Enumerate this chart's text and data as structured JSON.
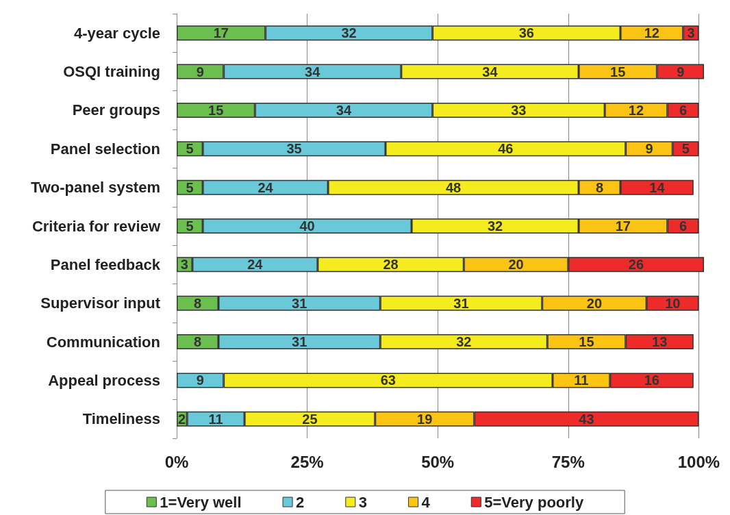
{
  "chart_data": {
    "type": "bar",
    "orientation": "horizontal",
    "stacked": true,
    "data_labels": true,
    "grid": "x",
    "legend": "bottom",
    "categories": [
      "4-year cycle",
      "OSQI training",
      "Peer groups",
      "Panel selection",
      "Two-panel system",
      "Criteria for review",
      "Panel feedback",
      "Supervisor input",
      "Communication",
      "Appeal process",
      "Timeliness"
    ],
    "series": [
      {
        "name": "1=Very well",
        "color": "#6bbf4e",
        "values": [
          17,
          9,
          15,
          5,
          5,
          5,
          3,
          8,
          8,
          null,
          2
        ]
      },
      {
        "name": "2",
        "color": "#6ac9d9",
        "values": [
          32,
          34,
          34,
          35,
          24,
          40,
          24,
          31,
          31,
          9,
          11
        ]
      },
      {
        "name": "3",
        "color": "#f4ec1f",
        "values": [
          36,
          34,
          33,
          46,
          48,
          32,
          28,
          31,
          32,
          63,
          25
        ]
      },
      {
        "name": "4",
        "color": "#fbc314",
        "values": [
          12,
          15,
          12,
          9,
          8,
          17,
          20,
          20,
          15,
          11,
          19
        ]
      },
      {
        "name": "5=Very poorly",
        "color": "#ee2b2b",
        "values": [
          3,
          9,
          6,
          5,
          14,
          6,
          26,
          10,
          13,
          16,
          43
        ]
      }
    ],
    "xlim": [
      0,
      101
    ],
    "xticks": [
      {
        "value": 0,
        "label": "0%"
      },
      {
        "value": 25,
        "label": "25%"
      },
      {
        "value": 50,
        "label": "50%"
      },
      {
        "value": 75,
        "label": "75%"
      },
      {
        "value": 100,
        "label": "100%"
      }
    ]
  }
}
